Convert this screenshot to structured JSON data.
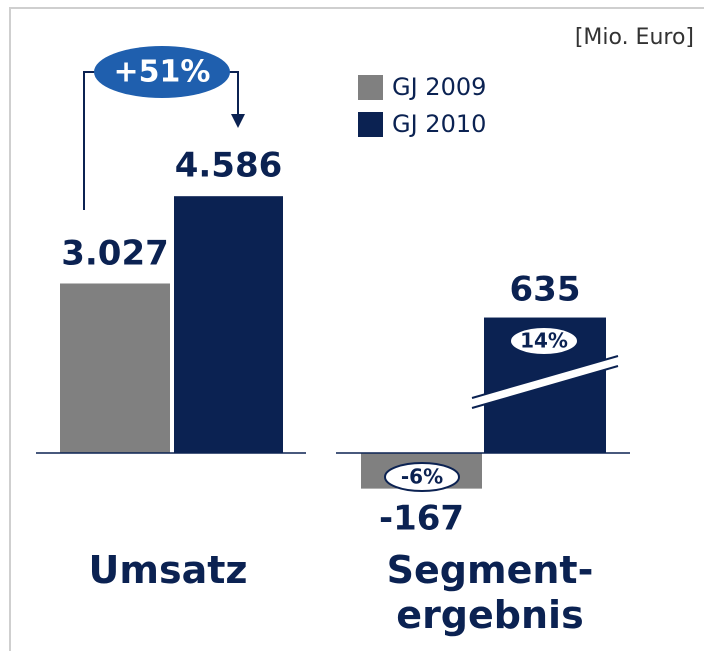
{
  "unit": "[Mio. Euro]",
  "legend": {
    "items": [
      {
        "name": "GJ 2009",
        "color": "#808080"
      },
      {
        "name": "GJ 2010",
        "color": "#0b2252"
      }
    ]
  },
  "chart_data": [
    {
      "type": "bar",
      "title": "Umsatz",
      "values": [
        3027,
        4586
      ],
      "value_labels": [
        "3.027",
        "4.586"
      ],
      "ylim": [
        0,
        5000
      ],
      "annotations": [
        "+51%"
      ]
    },
    {
      "type": "bar",
      "title": "Segment-\nergebnis",
      "values": [
        -167,
        635
      ],
      "value_labels": [
        "-167",
        "635"
      ],
      "ylim": [
        -200,
        700
      ],
      "annotations": [
        "-6%",
        "14%"
      ]
    }
  ]
}
